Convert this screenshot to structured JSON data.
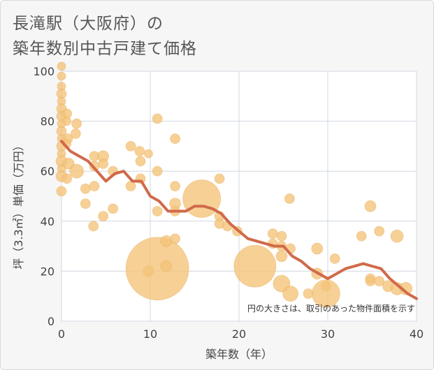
{
  "title_lines": [
    "長滝駅（大阪府）の",
    "築年数別中古戸建て価格"
  ],
  "chart_data": {
    "type": "scatter",
    "xlabel": "築年数（年）",
    "ylabel": "坪（3.3㎡）単価（万円）",
    "xlim": [
      0,
      40
    ],
    "ylim": [
      0,
      100
    ],
    "xticks": [
      0,
      10,
      20,
      30,
      40
    ],
    "yticks": [
      0,
      20,
      40,
      60,
      80,
      100
    ],
    "grid": true,
    "annotation": "円の大きさは、取引のあった物件面積を示す",
    "colors": {
      "bubble": "#f5c378",
      "line": "#d06a4a",
      "plot_bg": "#ffffff",
      "grid": "#d0d8e0"
    },
    "bubbles": [
      {
        "x": 0,
        "y": 102,
        "s": 6
      },
      {
        "x": 0,
        "y": 98,
        "s": 6
      },
      {
        "x": 0,
        "y": 94,
        "s": 6
      },
      {
        "x": 0,
        "y": 91,
        "s": 7
      },
      {
        "x": 0,
        "y": 88,
        "s": 6
      },
      {
        "x": 0,
        "y": 85,
        "s": 7
      },
      {
        "x": 0,
        "y": 82,
        "s": 7
      },
      {
        "x": 0,
        "y": 79,
        "s": 6
      },
      {
        "x": 0,
        "y": 76,
        "s": 7
      },
      {
        "x": 0,
        "y": 73,
        "s": 6
      },
      {
        "x": 0,
        "y": 70,
        "s": 7
      },
      {
        "x": 0,
        "y": 67,
        "s": 6
      },
      {
        "x": 0,
        "y": 64,
        "s": 8
      },
      {
        "x": 0,
        "y": 61,
        "s": 6
      },
      {
        "x": 0,
        "y": 58,
        "s": 8
      },
      {
        "x": 0,
        "y": 52,
        "s": 7
      },
      {
        "x": 0.6,
        "y": 83,
        "s": 7
      },
      {
        "x": 0.6,
        "y": 80,
        "s": 6
      },
      {
        "x": 0.7,
        "y": 73,
        "s": 7
      },
      {
        "x": 0.6,
        "y": 71,
        "s": 6
      },
      {
        "x": 0.8,
        "y": 63,
        "s": 8
      },
      {
        "x": 0.6,
        "y": 57,
        "s": 7
      },
      {
        "x": 1.7,
        "y": 79,
        "s": 7
      },
      {
        "x": 1.6,
        "y": 75,
        "s": 7
      },
      {
        "x": 1.7,
        "y": 60,
        "s": 10
      },
      {
        "x": 2.7,
        "y": 53,
        "s": 7
      },
      {
        "x": 2.7,
        "y": 47,
        "s": 7
      },
      {
        "x": 3.7,
        "y": 66,
        "s": 7
      },
      {
        "x": 3.7,
        "y": 62,
        "s": 7
      },
      {
        "x": 3.7,
        "y": 54,
        "s": 7
      },
      {
        "x": 3.6,
        "y": 38,
        "s": 7
      },
      {
        "x": 4.7,
        "y": 66,
        "s": 8
      },
      {
        "x": 4.7,
        "y": 63,
        "s": 7
      },
      {
        "x": 4.7,
        "y": 42,
        "s": 7
      },
      {
        "x": 5.8,
        "y": 60,
        "s": 7
      },
      {
        "x": 5.8,
        "y": 45,
        "s": 7
      },
      {
        "x": 7.8,
        "y": 70,
        "s": 7
      },
      {
        "x": 7.8,
        "y": 54,
        "s": 7
      },
      {
        "x": 8.8,
        "y": 68,
        "s": 7
      },
      {
        "x": 8.9,
        "y": 64,
        "s": 7
      },
      {
        "x": 8.9,
        "y": 57,
        "s": 7
      },
      {
        "x": 9.8,
        "y": 67,
        "s": 6
      },
      {
        "x": 9.8,
        "y": 20,
        "s": 8
      },
      {
        "x": 10.8,
        "y": 81,
        "s": 7
      },
      {
        "x": 10.8,
        "y": 60,
        "s": 7
      },
      {
        "x": 10.8,
        "y": 44,
        "s": 7
      },
      {
        "x": 10.8,
        "y": 21,
        "s": 45
      },
      {
        "x": 11.8,
        "y": 32,
        "s": 8
      },
      {
        "x": 11.8,
        "y": 22,
        "s": 8
      },
      {
        "x": 12.8,
        "y": 73,
        "s": 7
      },
      {
        "x": 12.8,
        "y": 54,
        "s": 7
      },
      {
        "x": 12.8,
        "y": 47,
        "s": 8
      },
      {
        "x": 12.8,
        "y": 44,
        "s": 7
      },
      {
        "x": 12.8,
        "y": 33,
        "s": 7
      },
      {
        "x": 15.8,
        "y": 49,
        "s": 27
      },
      {
        "x": 17.8,
        "y": 57,
        "s": 7
      },
      {
        "x": 17.8,
        "y": 42,
        "s": 7
      },
      {
        "x": 17.8,
        "y": 39,
        "s": 7
      },
      {
        "x": 18.7,
        "y": 38,
        "s": 7
      },
      {
        "x": 19.8,
        "y": 36,
        "s": 7
      },
      {
        "x": 21.8,
        "y": 22,
        "s": 30
      },
      {
        "x": 23.8,
        "y": 35,
        "s": 7
      },
      {
        "x": 23.8,
        "y": 31,
        "s": 7
      },
      {
        "x": 24.8,
        "y": 34,
        "s": 7
      },
      {
        "x": 24.8,
        "y": 30,
        "s": 7
      },
      {
        "x": 24.8,
        "y": 26,
        "s": 8
      },
      {
        "x": 24.8,
        "y": 15,
        "s": 12
      },
      {
        "x": 25.7,
        "y": 49,
        "s": 7
      },
      {
        "x": 25.8,
        "y": 29,
        "s": 7
      },
      {
        "x": 25.8,
        "y": 11,
        "s": 11
      },
      {
        "x": 27.8,
        "y": 11,
        "s": 7
      },
      {
        "x": 28.8,
        "y": 29,
        "s": 8
      },
      {
        "x": 28.8,
        "y": 19,
        "s": 8
      },
      {
        "x": 29.8,
        "y": 14,
        "s": 7
      },
      {
        "x": 29.8,
        "y": 11,
        "s": 20
      },
      {
        "x": 30.8,
        "y": 25,
        "s": 7
      },
      {
        "x": 33.8,
        "y": 34,
        "s": 7
      },
      {
        "x": 34.8,
        "y": 46,
        "s": 8
      },
      {
        "x": 34.8,
        "y": 17,
        "s": 7
      },
      {
        "x": 34.8,
        "y": 16,
        "s": 7
      },
      {
        "x": 35.8,
        "y": 36,
        "s": 7
      },
      {
        "x": 35.8,
        "y": 16,
        "s": 7
      },
      {
        "x": 36.8,
        "y": 14,
        "s": 8
      },
      {
        "x": 37.8,
        "y": 34,
        "s": 9
      },
      {
        "x": 37.8,
        "y": 13,
        "s": 9
      },
      {
        "x": 38.8,
        "y": 13,
        "s": 9
      }
    ],
    "line": {
      "x": [
        0,
        1,
        2,
        3,
        4,
        5,
        6,
        7,
        8,
        9,
        10,
        11,
        12,
        13,
        14,
        15,
        16,
        17,
        18,
        19,
        20,
        21,
        22,
        23,
        24,
        25,
        26,
        27,
        28,
        29,
        30,
        31,
        32,
        33,
        34,
        35,
        36,
        37,
        38,
        39,
        40
      ],
      "y": [
        72,
        68,
        66,
        64,
        60,
        56,
        59,
        60,
        56,
        56,
        50,
        48,
        44,
        44,
        44,
        46,
        46,
        45,
        43,
        39,
        36,
        33,
        32,
        31,
        30,
        30,
        26,
        24,
        21,
        19,
        17,
        19,
        21,
        22,
        23,
        22,
        21,
        17,
        14,
        11,
        9
      ]
    }
  }
}
